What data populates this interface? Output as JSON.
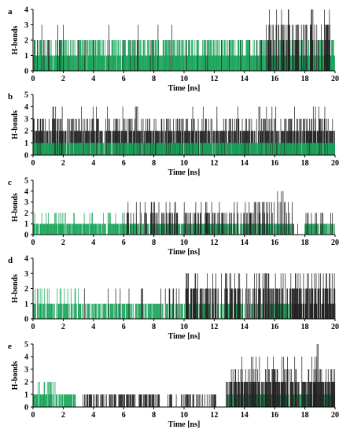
{
  "colors": {
    "green": "#1aa55a",
    "dark": "#222222",
    "axis": "#000000"
  },
  "chart_data": [
    {
      "type": "bar",
      "panel_label": "a",
      "xlabel": "Time [ns]",
      "ylabel": "H-bonds",
      "xlim": [
        0,
        20
      ],
      "ylim": [
        0,
        4
      ],
      "x_ticks": [
        0,
        2,
        4,
        6,
        8,
        10,
        12,
        14,
        16,
        18,
        20
      ],
      "y_ticks": [
        0,
        1,
        2,
        3,
        4
      ],
      "series": [
        {
          "color": "green",
          "segments": [
            {
              "start": 0,
              "end": 15.5,
              "value": 2,
              "density": 0.55
            },
            {
              "start": 15.5,
              "end": 20,
              "value": 2,
              "density": 0.35
            },
            {
              "start": 0,
              "end": 20,
              "value": 1,
              "density": 0.95
            }
          ]
        },
        {
          "color": "dark",
          "segments": [
            {
              "start": 0,
              "end": 15.4,
              "value": 3,
              "density": 0.02
            },
            {
              "start": 0,
              "end": 15.4,
              "value": 2,
              "density": 0.06
            },
            {
              "start": 15.4,
              "end": 19.8,
              "value": 4,
              "density": 0.06
            },
            {
              "start": 15.4,
              "end": 19.8,
              "value": 3,
              "density": 0.35
            },
            {
              "start": 15.4,
              "end": 19.8,
              "value": 2,
              "density": 0.35
            }
          ]
        }
      ]
    },
    {
      "type": "bar",
      "panel_label": "b",
      "xlabel": "Time [ns]",
      "ylabel": "H-bonds",
      "xlim": [
        0,
        20
      ],
      "ylim": [
        0,
        5
      ],
      "x_ticks": [
        0,
        2,
        4,
        6,
        8,
        10,
        12,
        14,
        16,
        18,
        20
      ],
      "y_ticks": [
        0,
        1,
        2,
        3,
        4,
        5
      ],
      "series": [
        {
          "color": "dark",
          "segments": [
            {
              "start": 0,
              "end": 20,
              "value": 4,
              "density": 0.04
            },
            {
              "start": 0,
              "end": 20,
              "value": 3,
              "density": 0.3
            },
            {
              "start": 0,
              "end": 20,
              "value": 2,
              "density": 0.75
            }
          ]
        },
        {
          "color": "green",
          "segments": [
            {
              "start": 0,
              "end": 20,
              "value": 1,
              "density": 0.85
            }
          ]
        }
      ]
    },
    {
      "type": "bar",
      "panel_label": "c",
      "xlabel": "Time [ns]",
      "ylabel": "H-bonds",
      "xlim": [
        0,
        20
      ],
      "ylim": [
        0,
        5
      ],
      "x_ticks": [
        0,
        2,
        4,
        6,
        8,
        10,
        12,
        14,
        16,
        18,
        20
      ],
      "y_ticks": [
        0,
        1,
        2,
        3,
        4,
        5
      ],
      "series": [
        {
          "color": "green",
          "segments": [
            {
              "start": 0,
              "end": 17.2,
              "value": 1,
              "density": 0.9
            },
            {
              "start": 18.0,
              "end": 20,
              "value": 1,
              "density": 0.9
            },
            {
              "start": 0,
              "end": 6,
              "value": 2,
              "density": 0.2
            }
          ]
        },
        {
          "color": "dark",
          "segments": [
            {
              "start": 6,
              "end": 17.2,
              "value": 2,
              "density": 0.35
            },
            {
              "start": 6,
              "end": 17.2,
              "value": 3,
              "density": 0.08
            },
            {
              "start": 14.5,
              "end": 16.8,
              "value": 3,
              "density": 0.35
            },
            {
              "start": 15.5,
              "end": 16.6,
              "value": 4,
              "density": 0.12
            },
            {
              "start": 17.2,
              "end": 18.0,
              "value": 1,
              "density": 0.25
            },
            {
              "start": 18.0,
              "end": 20,
              "value": 2,
              "density": 0.12
            }
          ]
        }
      ]
    },
    {
      "type": "bar",
      "panel_label": "d",
      "xlabel": "Time [ns]",
      "ylabel": "H-bonds",
      "xlim": [
        0,
        20
      ],
      "ylim": [
        0,
        4
      ],
      "x_ticks": [
        0,
        2,
        4,
        6,
        8,
        10,
        12,
        14,
        16,
        18,
        20
      ],
      "y_ticks": [
        0,
        1,
        2,
        3,
        4
      ],
      "series": [
        {
          "color": "green",
          "segments": [
            {
              "start": 0,
              "end": 17.3,
              "value": 1,
              "density": 0.7
            },
            {
              "start": 0,
              "end": 3,
              "value": 2,
              "density": 0.2
            }
          ]
        },
        {
          "color": "dark",
          "segments": [
            {
              "start": 3,
              "end": 10,
              "value": 2,
              "density": 0.12
            },
            {
              "start": 10,
              "end": 20,
              "value": 2,
              "density": 0.55
            },
            {
              "start": 10,
              "end": 20,
              "value": 3,
              "density": 0.2
            },
            {
              "start": 13.5,
              "end": 14.5,
              "value": 4,
              "density": 0.1
            },
            {
              "start": 17.3,
              "end": 20,
              "value": 1,
              "density": 0.6
            }
          ]
        }
      ]
    },
    {
      "type": "bar",
      "panel_label": "e",
      "xlabel": "Time [ns]",
      "ylabel": "H-bonds",
      "xlim": [
        0,
        20
      ],
      "ylim": [
        0,
        5
      ],
      "x_ticks": [
        0,
        2,
        4,
        6,
        8,
        10,
        12,
        14,
        16,
        18,
        20
      ],
      "y_ticks": [
        0,
        1,
        2,
        3,
        4,
        5
      ],
      "series": [
        {
          "color": "green",
          "segments": [
            {
              "start": 0,
              "end": 2.9,
              "value": 1,
              "density": 0.85
            },
            {
              "start": 0,
              "end": 1.5,
              "value": 2,
              "density": 0.25
            },
            {
              "start": 12.8,
              "end": 20,
              "value": 1,
              "density": 0.85
            }
          ]
        },
        {
          "color": "dark",
          "segments": [
            {
              "start": 3.3,
              "end": 8.4,
              "value": 1,
              "density": 0.7
            },
            {
              "start": 8.9,
              "end": 12.2,
              "value": 1,
              "density": 0.55
            },
            {
              "start": 12.8,
              "end": 20,
              "value": 2,
              "density": 0.75
            },
            {
              "start": 12.8,
              "end": 20,
              "value": 3,
              "density": 0.3
            },
            {
              "start": 13.5,
              "end": 20,
              "value": 4,
              "density": 0.08
            },
            {
              "start": 18.7,
              "end": 18.9,
              "value": 5,
              "density": 0.5
            }
          ]
        }
      ]
    }
  ]
}
